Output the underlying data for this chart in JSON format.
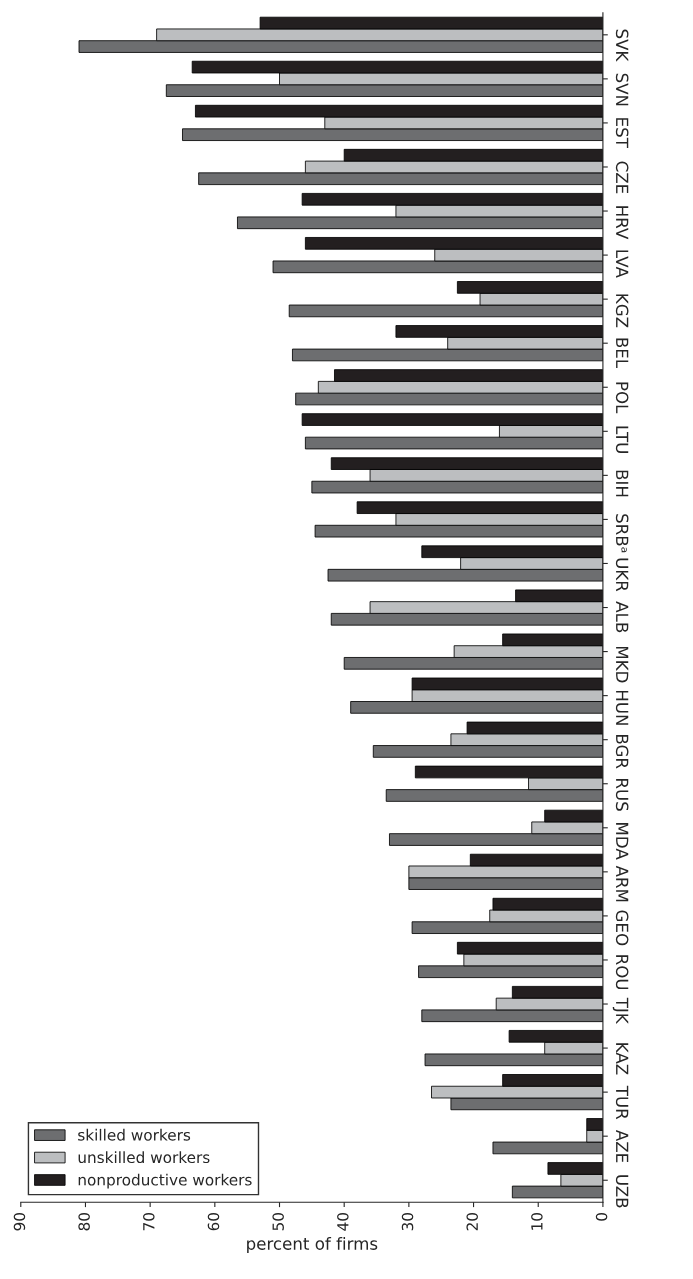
{
  "chart_data": {
    "type": "bar",
    "orientation": "horizontal",
    "xlabel": "percent of firms",
    "categories": [
      "SVK",
      "SVN",
      "EST",
      "CZE",
      "HRV",
      "LVA",
      "KGZ",
      "BEL",
      "POL",
      "LTU",
      "BIH",
      "SRBᵃ",
      "UKR",
      "ALB",
      "MKD",
      "HUN",
      "BGR",
      "RUS",
      "MDA",
      "ARM",
      "GEO",
      "ROU",
      "TJK",
      "KAZ",
      "TUR",
      "AZE",
      "UZB"
    ],
    "series": [
      {
        "name": "skilled workers",
        "color": "#6d6e70",
        "values": [
          81,
          67.5,
          65,
          62.5,
          56.5,
          51,
          48.5,
          48,
          47.5,
          46,
          45,
          44.5,
          42.5,
          42,
          40,
          39,
          35.5,
          33.5,
          33,
          30,
          29.5,
          28.5,
          28,
          27.5,
          23.5,
          17,
          14
        ]
      },
      {
        "name": "unskilled workers",
        "color": "#bcbec0",
        "values": [
          69,
          50,
          43,
          46,
          32,
          26,
          19,
          24,
          44,
          16,
          36,
          32,
          22,
          36,
          23,
          29.5,
          23.5,
          11.5,
          11,
          30,
          17.5,
          21.5,
          16.5,
          9,
          26.5,
          2.5,
          6.5
        ]
      },
      {
        "name": "nonproductive workers",
        "color": "#231f20",
        "values": [
          53,
          63.5,
          63,
          40,
          46.5,
          46,
          22.5,
          32,
          41.5,
          46.5,
          42,
          38,
          28,
          13.5,
          15.5,
          29.5,
          21,
          29,
          9,
          20.5,
          17,
          22.5,
          14,
          14.5,
          15.5,
          2.5,
          8.5
        ]
      }
    ],
    "xlim": [
      90,
      0
    ],
    "xticks": [
      90,
      80,
      70,
      60,
      50,
      40,
      30,
      20,
      10,
      0
    ],
    "grid": false,
    "legend": "bottom left"
  }
}
